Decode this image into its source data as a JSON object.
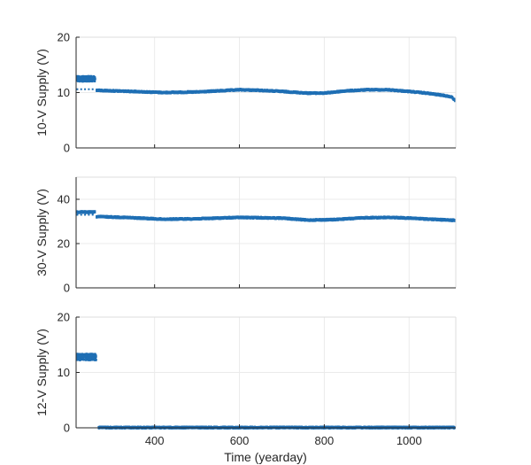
{
  "chart_data": [
    {
      "type": "scatter",
      "ylabel": "10-V Supply (V)",
      "xlabel": "",
      "xlim": [
        215,
        1110
      ],
      "ylim": [
        0,
        20
      ],
      "yticks": [
        0,
        10,
        20
      ],
      "xticks": [
        400,
        600,
        800,
        1000
      ],
      "grid": true,
      "color": "#1f6fb4",
      "segments": [
        {
          "x": [
            216,
            260
          ],
          "y": [
            12.0,
            13.0
          ],
          "style": "noisy"
        },
        {
          "x": [
            218,
            258
          ],
          "y": [
            10.6,
            10.6
          ],
          "style": "sparse"
        },
        {
          "x": [
            263,
            350,
            420,
            500,
            600,
            650,
            700,
            760,
            800,
            850,
            900,
            950,
            1000,
            1040,
            1080,
            1100,
            1108
          ],
          "y": [
            10.4,
            10.2,
            10.0,
            10.1,
            10.5,
            10.4,
            10.2,
            9.9,
            9.9,
            10.3,
            10.5,
            10.5,
            10.2,
            9.9,
            9.5,
            9.2,
            8.6
          ],
          "style": "band"
        }
      ]
    },
    {
      "type": "scatter",
      "ylabel": "30-V Supply (V)",
      "xlabel": "",
      "xlim": [
        215,
        1110
      ],
      "ylim": [
        0,
        50
      ],
      "yticks": [
        0,
        20,
        40
      ],
      "xticks": [
        400,
        600,
        800,
        1000
      ],
      "grid": true,
      "color": "#1f6fb4",
      "segments": [
        {
          "x": [
            216,
            260
          ],
          "y": [
            34.2,
            34.2
          ],
          "style": "band"
        },
        {
          "x": [
            218,
            258
          ],
          "y": [
            33.0,
            33.0
          ],
          "style": "sparse"
        },
        {
          "x": [
            263,
            330,
            420,
            500,
            600,
            700,
            760,
            820,
            900,
            960,
            1000,
            1050,
            1108
          ],
          "y": [
            32.2,
            31.8,
            31.0,
            31.2,
            31.8,
            31.5,
            30.6,
            30.8,
            31.7,
            31.8,
            31.5,
            31.0,
            30.5
          ],
          "style": "band"
        }
      ]
    },
    {
      "type": "scatter",
      "ylabel": "12-V Supply (V)",
      "xlabel": "Time (yearday)",
      "xlim": [
        215,
        1110
      ],
      "ylim": [
        0,
        20
      ],
      "yticks": [
        0,
        10,
        20
      ],
      "xticks": [
        400,
        600,
        800,
        1000
      ],
      "grid": true,
      "color": "#1f6fb4",
      "segments": [
        {
          "x": [
            216,
            262
          ],
          "y": [
            12.2,
            13.4
          ],
          "style": "noisy"
        },
        {
          "x": [
            268,
            500,
            800,
            1108
          ],
          "y": [
            0.05,
            0.05,
            0.05,
            0.05
          ],
          "style": "band"
        }
      ]
    }
  ]
}
